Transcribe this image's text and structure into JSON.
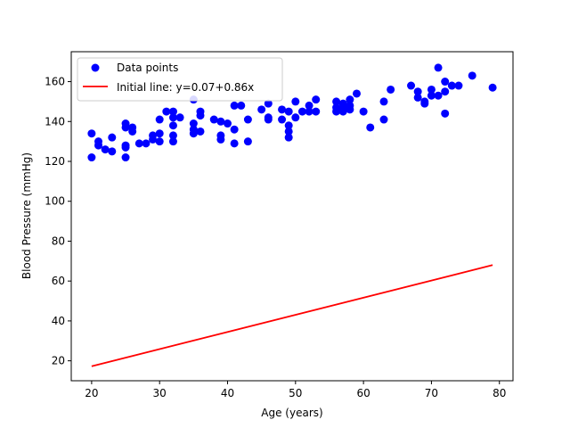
{
  "chart_data": {
    "type": "scatter",
    "xlabel": "Age (years)",
    "ylabel": "Blood Pressure (mmHg)",
    "xlim": [
      17,
      82
    ],
    "ylim": [
      10,
      175
    ],
    "xticks": [
      20,
      30,
      40,
      50,
      60,
      70,
      80
    ],
    "yticks": [
      20,
      40,
      60,
      80,
      100,
      120,
      140,
      160
    ],
    "grid": false,
    "legend_position": "top-left",
    "series": [
      {
        "name": "Data points",
        "kind": "scatter",
        "color": "#0000ff",
        "points": [
          [
            20,
            134
          ],
          [
            20,
            122
          ],
          [
            21,
            128
          ],
          [
            21,
            130
          ],
          [
            22,
            126
          ],
          [
            23,
            125
          ],
          [
            23,
            132
          ],
          [
            25,
            139
          ],
          [
            25,
            137
          ],
          [
            25,
            128
          ],
          [
            25,
            127
          ],
          [
            25,
            122
          ],
          [
            26,
            135
          ],
          [
            26,
            137
          ],
          [
            27,
            129
          ],
          [
            28,
            129
          ],
          [
            29,
            131
          ],
          [
            29,
            133
          ],
          [
            30,
            134
          ],
          [
            30,
            130
          ],
          [
            30,
            141
          ],
          [
            31,
            145
          ],
          [
            32,
            142
          ],
          [
            32,
            145
          ],
          [
            32,
            133
          ],
          [
            32,
            130
          ],
          [
            32,
            138
          ],
          [
            33,
            142
          ],
          [
            35,
            151
          ],
          [
            35,
            136
          ],
          [
            35,
            139
          ],
          [
            35,
            134
          ],
          [
            36,
            143
          ],
          [
            36,
            145
          ],
          [
            36,
            135
          ],
          [
            38,
            141
          ],
          [
            39,
            140
          ],
          [
            39,
            133
          ],
          [
            39,
            131
          ],
          [
            40,
            139
          ],
          [
            41,
            148
          ],
          [
            41,
            136
          ],
          [
            41,
            129
          ],
          [
            42,
            148
          ],
          [
            43,
            141
          ],
          [
            43,
            130
          ],
          [
            45,
            146
          ],
          [
            46,
            149
          ],
          [
            46,
            142
          ],
          [
            46,
            141
          ],
          [
            48,
            146
          ],
          [
            48,
            141
          ],
          [
            49,
            145
          ],
          [
            49,
            138
          ],
          [
            49,
            135
          ],
          [
            49,
            132
          ],
          [
            50,
            150
          ],
          [
            50,
            142
          ],
          [
            51,
            145
          ],
          [
            52,
            148
          ],
          [
            52,
            145
          ],
          [
            53,
            151
          ],
          [
            53,
            145
          ],
          [
            56,
            150
          ],
          [
            56,
            147
          ],
          [
            56,
            145
          ],
          [
            57,
            149
          ],
          [
            57,
            147
          ],
          [
            57,
            145
          ],
          [
            58,
            151
          ],
          [
            58,
            148
          ],
          [
            58,
            146
          ],
          [
            59,
            154
          ],
          [
            60,
            145
          ],
          [
            61,
            137
          ],
          [
            63,
            150
          ],
          [
            63,
            141
          ],
          [
            64,
            156
          ],
          [
            67,
            158
          ],
          [
            68,
            155
          ],
          [
            68,
            152
          ],
          [
            69,
            150
          ],
          [
            69,
            149
          ],
          [
            70,
            156
          ],
          [
            70,
            153
          ],
          [
            71,
            167
          ],
          [
            71,
            153
          ],
          [
            72,
            160
          ],
          [
            72,
            155
          ],
          [
            72,
            144
          ],
          [
            73,
            158
          ],
          [
            74,
            158
          ],
          [
            76,
            163
          ],
          [
            79,
            157
          ]
        ]
      },
      {
        "name": "Initial line: y=0.07+0.86x",
        "kind": "line",
        "color": "#ff0000",
        "intercept": 0.07,
        "slope": 0.86,
        "x_range": [
          20,
          79
        ]
      }
    ]
  }
}
